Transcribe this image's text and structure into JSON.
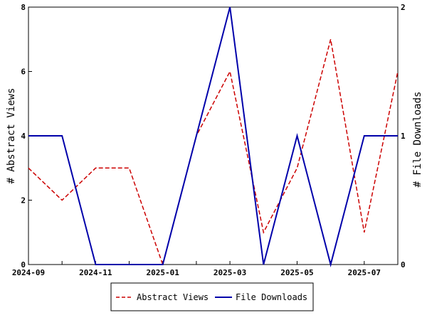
{
  "chart_data": {
    "type": "line",
    "x": [
      "2024-09",
      "2024-10",
      "2024-11",
      "2024-12",
      "2025-01",
      "2025-02",
      "2025-03",
      "2025-04",
      "2025-05",
      "2025-06",
      "2025-07",
      "2025-08"
    ],
    "x_tick_labels": [
      "2024-09",
      "2024-11",
      "2025-01",
      "2025-03",
      "2025-05",
      "2025-07"
    ],
    "left_axis": {
      "label": "# Abstract Views",
      "ylim": [
        0,
        8
      ],
      "ticks": [
        "0",
        "2",
        "4",
        "6",
        "8"
      ]
    },
    "right_axis": {
      "label": "# File Downloads",
      "ylim": [
        0,
        2
      ],
      "ticks": [
        "0",
        "1",
        "2"
      ]
    },
    "series": [
      {
        "name": "Abstract Views",
        "axis": "left",
        "color": "#cc0000",
        "style": "dashed",
        "values": [
          3,
          2,
          3,
          3,
          0,
          4,
          6,
          1,
          3,
          7,
          1,
          6
        ]
      },
      {
        "name": "File Downloads",
        "axis": "right",
        "color": "#0000aa",
        "style": "solid",
        "values": [
          1,
          1,
          0,
          0,
          0,
          1,
          2,
          0,
          1,
          0,
          1,
          1
        ]
      }
    ],
    "legend_position": "bottom",
    "grid": false
  }
}
